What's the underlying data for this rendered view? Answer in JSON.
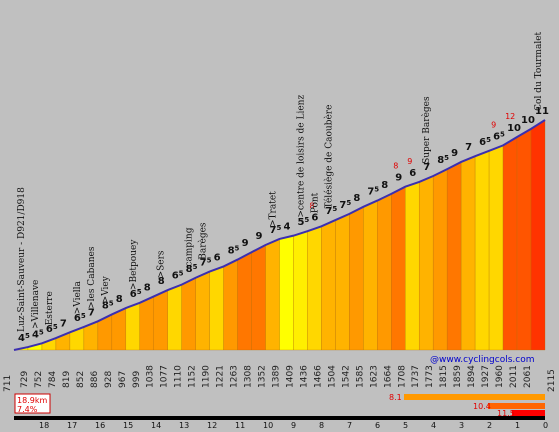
{
  "chart_data": {
    "type": "area",
    "subtitle_climb": "Luz-Saint-Sauveur - D921/D918",
    "summit": "Col du Tourmalet",
    "credit": "@www.cyclingcols.com",
    "summary": {
      "distance": "18.9km",
      "average": "7.4%"
    },
    "start_altitude": "711",
    "end_altitude": "2115",
    "x_axis_km": [
      "18",
      "17",
      "16",
      "15",
      "14",
      "13",
      "12",
      "11",
      "10",
      "9",
      "8",
      "7",
      "6",
      "5",
      "4",
      "3",
      "2",
      "1",
      "0"
    ],
    "segments": [
      {
        "alt": "729",
        "grade": "4",
        "grade_sup": "5",
        "color": "#ffff00"
      },
      {
        "alt": "752",
        "grade": "4",
        "grade_sup": "5",
        "color": "#ffff00"
      },
      {
        "alt": "784",
        "grade": "6",
        "grade_sup": "5",
        "color": "#ffd700"
      },
      {
        "alt": "819",
        "grade": "7",
        "grade_sup": "",
        "color": "#ffb300"
      },
      {
        "alt": "852",
        "grade": "6",
        "grade_sup": "5",
        "color": "#ffd700"
      },
      {
        "alt": "886",
        "grade": "7",
        "grade_sup": "",
        "color": "#ffb300"
      },
      {
        "alt": "928",
        "grade": "8",
        "grade_sup": "5",
        "color": "#ff9900"
      },
      {
        "alt": "967",
        "grade": "8",
        "grade_sup": "",
        "color": "#ff9900"
      },
      {
        "alt": "999",
        "grade": "6",
        "grade_sup": "5",
        "color": "#ffd700"
      },
      {
        "alt": "1038",
        "grade": "8",
        "grade_sup": "",
        "color": "#ff9900"
      },
      {
        "alt": "1077",
        "grade": "8",
        "grade_sup": "",
        "color": "#ff9900"
      },
      {
        "alt": "1110",
        "grade": "6",
        "grade_sup": "5",
        "color": "#ffd700"
      },
      {
        "alt": "1152",
        "grade": "8",
        "grade_sup": "5",
        "color": "#ff9900"
      },
      {
        "alt": "1190",
        "grade": "7",
        "grade_sup": "5",
        "color": "#ffb300"
      },
      {
        "alt": "1221",
        "grade": "6",
        "grade_sup": "",
        "color": "#ffd700"
      },
      {
        "alt": "1263",
        "grade": "8",
        "grade_sup": "5",
        "color": "#ff9900"
      },
      {
        "alt": "1308",
        "grade": "9",
        "grade_sup": "",
        "color": "#ff7700"
      },
      {
        "alt": "1352",
        "grade": "9",
        "grade_sup": "",
        "color": "#ff7700"
      },
      {
        "alt": "1389",
        "grade": "7",
        "grade_sup": "5",
        "color": "#ffb300"
      },
      {
        "alt": "1409",
        "grade": "4",
        "grade_sup": "",
        "color": "#ffff00"
      },
      {
        "alt": "1436",
        "grade": "5",
        "grade_sup": "5",
        "color": "#ffee00"
      },
      {
        "alt": "1466",
        "grade": "6",
        "grade_sup": "",
        "color": "#ffd700"
      },
      {
        "alt": "1504",
        "grade": "7",
        "grade_sup": "5",
        "color": "#ffb300"
      },
      {
        "alt": "1542",
        "grade": "7",
        "grade_sup": "5",
        "color": "#ffb300"
      },
      {
        "alt": "1585",
        "grade": "8",
        "grade_sup": "",
        "color": "#ff9900"
      },
      {
        "alt": "1623",
        "grade": "7",
        "grade_sup": "5",
        "color": "#ffb300"
      },
      {
        "alt": "1664",
        "grade": "8",
        "grade_sup": "",
        "color": "#ff9900"
      },
      {
        "alt": "1708",
        "grade": "9",
        "grade_sup": "",
        "color": "#ff7700"
      },
      {
        "alt": "1737",
        "grade": "6",
        "grade_sup": "",
        "color": "#ffd700"
      },
      {
        "alt": "1773",
        "grade": "7",
        "grade_sup": "",
        "color": "#ffb300"
      },
      {
        "alt": "1815",
        "grade": "8",
        "grade_sup": "5",
        "color": "#ff9900"
      },
      {
        "alt": "1859",
        "grade": "9",
        "grade_sup": "",
        "color": "#ff7700"
      },
      {
        "alt": "1894",
        "grade": "7",
        "grade_sup": "",
        "color": "#ffb300"
      },
      {
        "alt": "1927",
        "grade": "6",
        "grade_sup": "5",
        "color": "#ffd700"
      },
      {
        "alt": "1960",
        "grade": "6",
        "grade_sup": "5",
        "color": "#ffd700"
      },
      {
        "alt": "2011",
        "grade": "10",
        "grade_sup": "",
        "color": "#ff5500"
      },
      {
        "alt": "2061",
        "grade": "10",
        "grade_sup": "",
        "color": "#ff5500"
      },
      {
        "alt": "",
        "grade": "11",
        "grade_sup": "",
        "color": "#ff3300"
      }
    ],
    "peaks": [
      {
        "label": "8",
        "after_seg": 21
      },
      {
        "label": "8",
        "after_seg": 27
      },
      {
        "label": "9",
        "after_seg": 28
      },
      {
        "label": "9",
        "after_seg": 34
      },
      {
        "label": "12",
        "after_seg": 35
      }
    ],
    "places": [
      {
        "label": "Luz-Saint-Sauveur - D921/D918",
        "seg": 0
      },
      {
        "label": ">Villenave",
        "seg": 1
      },
      {
        "label": "Esterre",
        "seg": 2
      },
      {
        "label": ">Viella",
        "seg": 4
      },
      {
        "label": ">les Cabanes",
        "seg": 5
      },
      {
        "label": ">Viey",
        "seg": 6
      },
      {
        "label": ">Betpouey",
        "seg": 8
      },
      {
        "label": ">Sers",
        "seg": 10
      },
      {
        "label": "camping",
        "seg": 12
      },
      {
        "label": "Barèges",
        "seg": 13
      },
      {
        "label": ">Tratet",
        "seg": 18
      },
      {
        "label": ">centre de loisirs de Lienz",
        "seg": 20
      },
      {
        "label": "Pont",
        "seg": 21
      },
      {
        "label": "Télésiège de Caoubère",
        "seg": 22
      },
      {
        "label": "Super Barèges",
        "seg": 29
      },
      {
        "label": "Col du Tourmalet",
        "seg": 37
      }
    ],
    "bars": [
      {
        "value": "8.1",
        "grade_start": "8.1"
      },
      {
        "value": "10.4",
        "grade_start": "10.4"
      },
      {
        "value": "11.5",
        "grade_start": "11.5"
      }
    ]
  }
}
